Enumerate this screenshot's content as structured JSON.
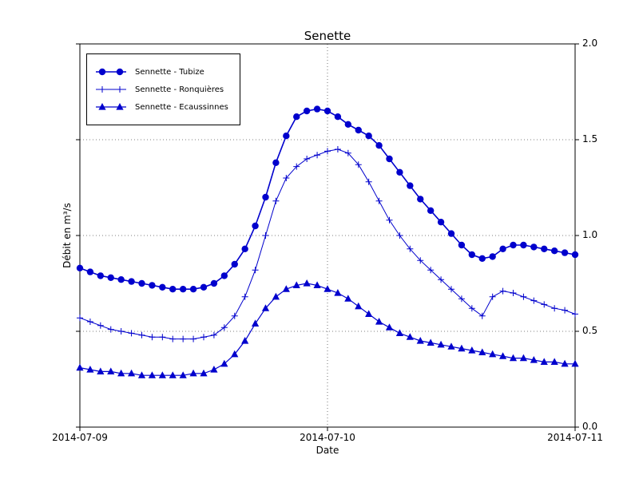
{
  "chart_data": {
    "type": "line",
    "title": "Senette",
    "xlabel": "Date",
    "ylabel": "Débit en m³/s",
    "ylim": [
      0.0,
      2.0
    ],
    "x_max": 48,
    "grid": {
      "style": "dotted",
      "y_values": [
        0.5,
        1.0,
        1.5
      ],
      "x_hours": [
        24
      ]
    },
    "legend_position": "upper left",
    "xticks": [
      {
        "hour": 0,
        "label": "2014-07-09"
      },
      {
        "hour": 24,
        "label": "2014-07-10"
      },
      {
        "hour": 48,
        "label": "2014-07-11"
      }
    ],
    "yticks": [
      0.0,
      0.5,
      1.0,
      1.5,
      2.0
    ],
    "ytick_labels": [
      "2.0",
      "1.5",
      "1.0",
      "0.5",
      "0.0"
    ],
    "x": [
      0,
      1,
      2,
      3,
      4,
      5,
      6,
      7,
      8,
      9,
      10,
      11,
      12,
      13,
      14,
      15,
      16,
      17,
      18,
      19,
      20,
      21,
      22,
      23,
      24,
      25,
      26,
      27,
      28,
      29,
      30,
      31,
      32,
      33,
      34,
      35,
      36,
      37,
      38,
      39,
      40,
      41,
      42,
      43,
      44,
      45,
      46,
      47,
      48
    ],
    "series": [
      {
        "name": "Sennette - Tubize",
        "marker": "circle",
        "color": "#0000cd",
        "linewidth": 1.6,
        "values": [
          0.83,
          0.81,
          0.79,
          0.78,
          0.77,
          0.76,
          0.75,
          0.74,
          0.73,
          0.72,
          0.72,
          0.72,
          0.73,
          0.75,
          0.79,
          0.85,
          0.93,
          1.05,
          1.2,
          1.38,
          1.52,
          1.62,
          1.65,
          1.66,
          1.65,
          1.62,
          1.58,
          1.55,
          1.52,
          1.47,
          1.4,
          1.33,
          1.26,
          1.19,
          1.13,
          1.07,
          1.01,
          0.95,
          0.9,
          0.88,
          0.89,
          0.93,
          0.95,
          0.95,
          0.94,
          0.93,
          0.92,
          0.91,
          0.9
        ]
      },
      {
        "name": "Sennette - Ronquières",
        "marker": "plus",
        "color": "#0000cd",
        "linewidth": 1.0,
        "values": [
          0.57,
          0.55,
          0.53,
          0.51,
          0.5,
          0.49,
          0.48,
          0.47,
          0.47,
          0.46,
          0.46,
          0.46,
          0.47,
          0.48,
          0.52,
          0.58,
          0.68,
          0.82,
          1.0,
          1.18,
          1.3,
          1.36,
          1.4,
          1.42,
          1.44,
          1.45,
          1.43,
          1.37,
          1.28,
          1.18,
          1.08,
          1.0,
          0.93,
          0.87,
          0.82,
          0.77,
          0.72,
          0.67,
          0.62,
          0.58,
          0.68,
          0.71,
          0.7,
          0.68,
          0.66,
          0.64,
          0.62,
          0.61,
          0.59
        ]
      },
      {
        "name": "Sennette - Ecaussinnes",
        "marker": "triangle",
        "color": "#0000cd",
        "linewidth": 1.2,
        "values": [
          0.31,
          0.3,
          0.29,
          0.29,
          0.28,
          0.28,
          0.27,
          0.27,
          0.27,
          0.27,
          0.27,
          0.28,
          0.28,
          0.3,
          0.33,
          0.38,
          0.45,
          0.54,
          0.62,
          0.68,
          0.72,
          0.74,
          0.75,
          0.74,
          0.72,
          0.7,
          0.67,
          0.63,
          0.59,
          0.55,
          0.52,
          0.49,
          0.47,
          0.45,
          0.44,
          0.43,
          0.42,
          0.41,
          0.4,
          0.39,
          0.38,
          0.37,
          0.36,
          0.36,
          0.35,
          0.34,
          0.34,
          0.33,
          0.33
        ]
      }
    ]
  }
}
